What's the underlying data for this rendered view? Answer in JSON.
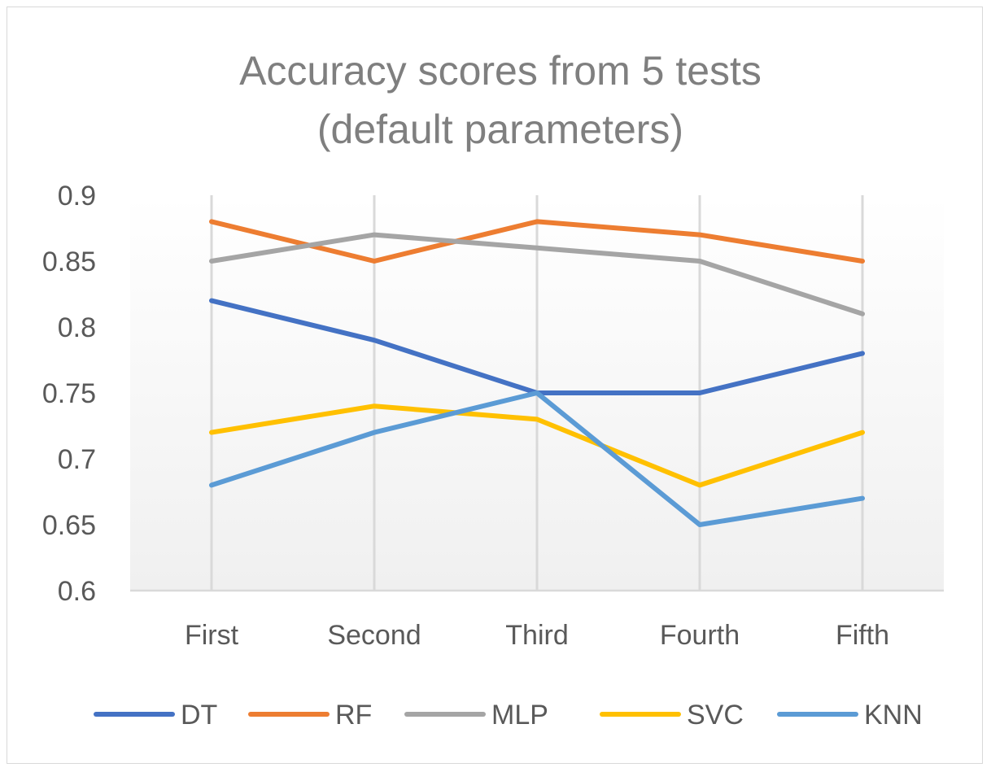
{
  "chart_data": {
    "type": "line",
    "title": "Accuracy scores from 5 tests (default parameters)",
    "title_lines": [
      "Accuracy scores from 5 tests",
      "(default parameters)"
    ],
    "categories": [
      "First",
      "Second",
      "Third",
      "Fourth",
      "Fifth"
    ],
    "ylim": [
      0.6,
      0.9
    ],
    "yticks": [
      0.6,
      0.65,
      0.7,
      0.75,
      0.8,
      0.85,
      0.9
    ],
    "ytick_labels": [
      "0.6",
      "0.65",
      "0.7",
      "0.75",
      "0.8",
      "0.85",
      "0.9"
    ],
    "grid": "vertical",
    "legend_position": "bottom",
    "series": [
      {
        "name": "DT",
        "color": "#4472c4",
        "values": [
          0.82,
          0.79,
          0.75,
          0.75,
          0.78
        ]
      },
      {
        "name": "RF",
        "color": "#ed7d31",
        "values": [
          0.88,
          0.85,
          0.88,
          0.87,
          0.85
        ]
      },
      {
        "name": "MLP",
        "color": "#a5a5a5",
        "values": [
          0.85,
          0.87,
          0.86,
          0.85,
          0.81
        ]
      },
      {
        "name": "SVC",
        "color": "#ffc000",
        "values": [
          0.72,
          0.74,
          0.73,
          0.68,
          0.72
        ]
      },
      {
        "name": "KNN",
        "color": "#5b9bd5",
        "values": [
          0.68,
          0.72,
          0.75,
          0.65,
          0.67
        ]
      }
    ]
  }
}
